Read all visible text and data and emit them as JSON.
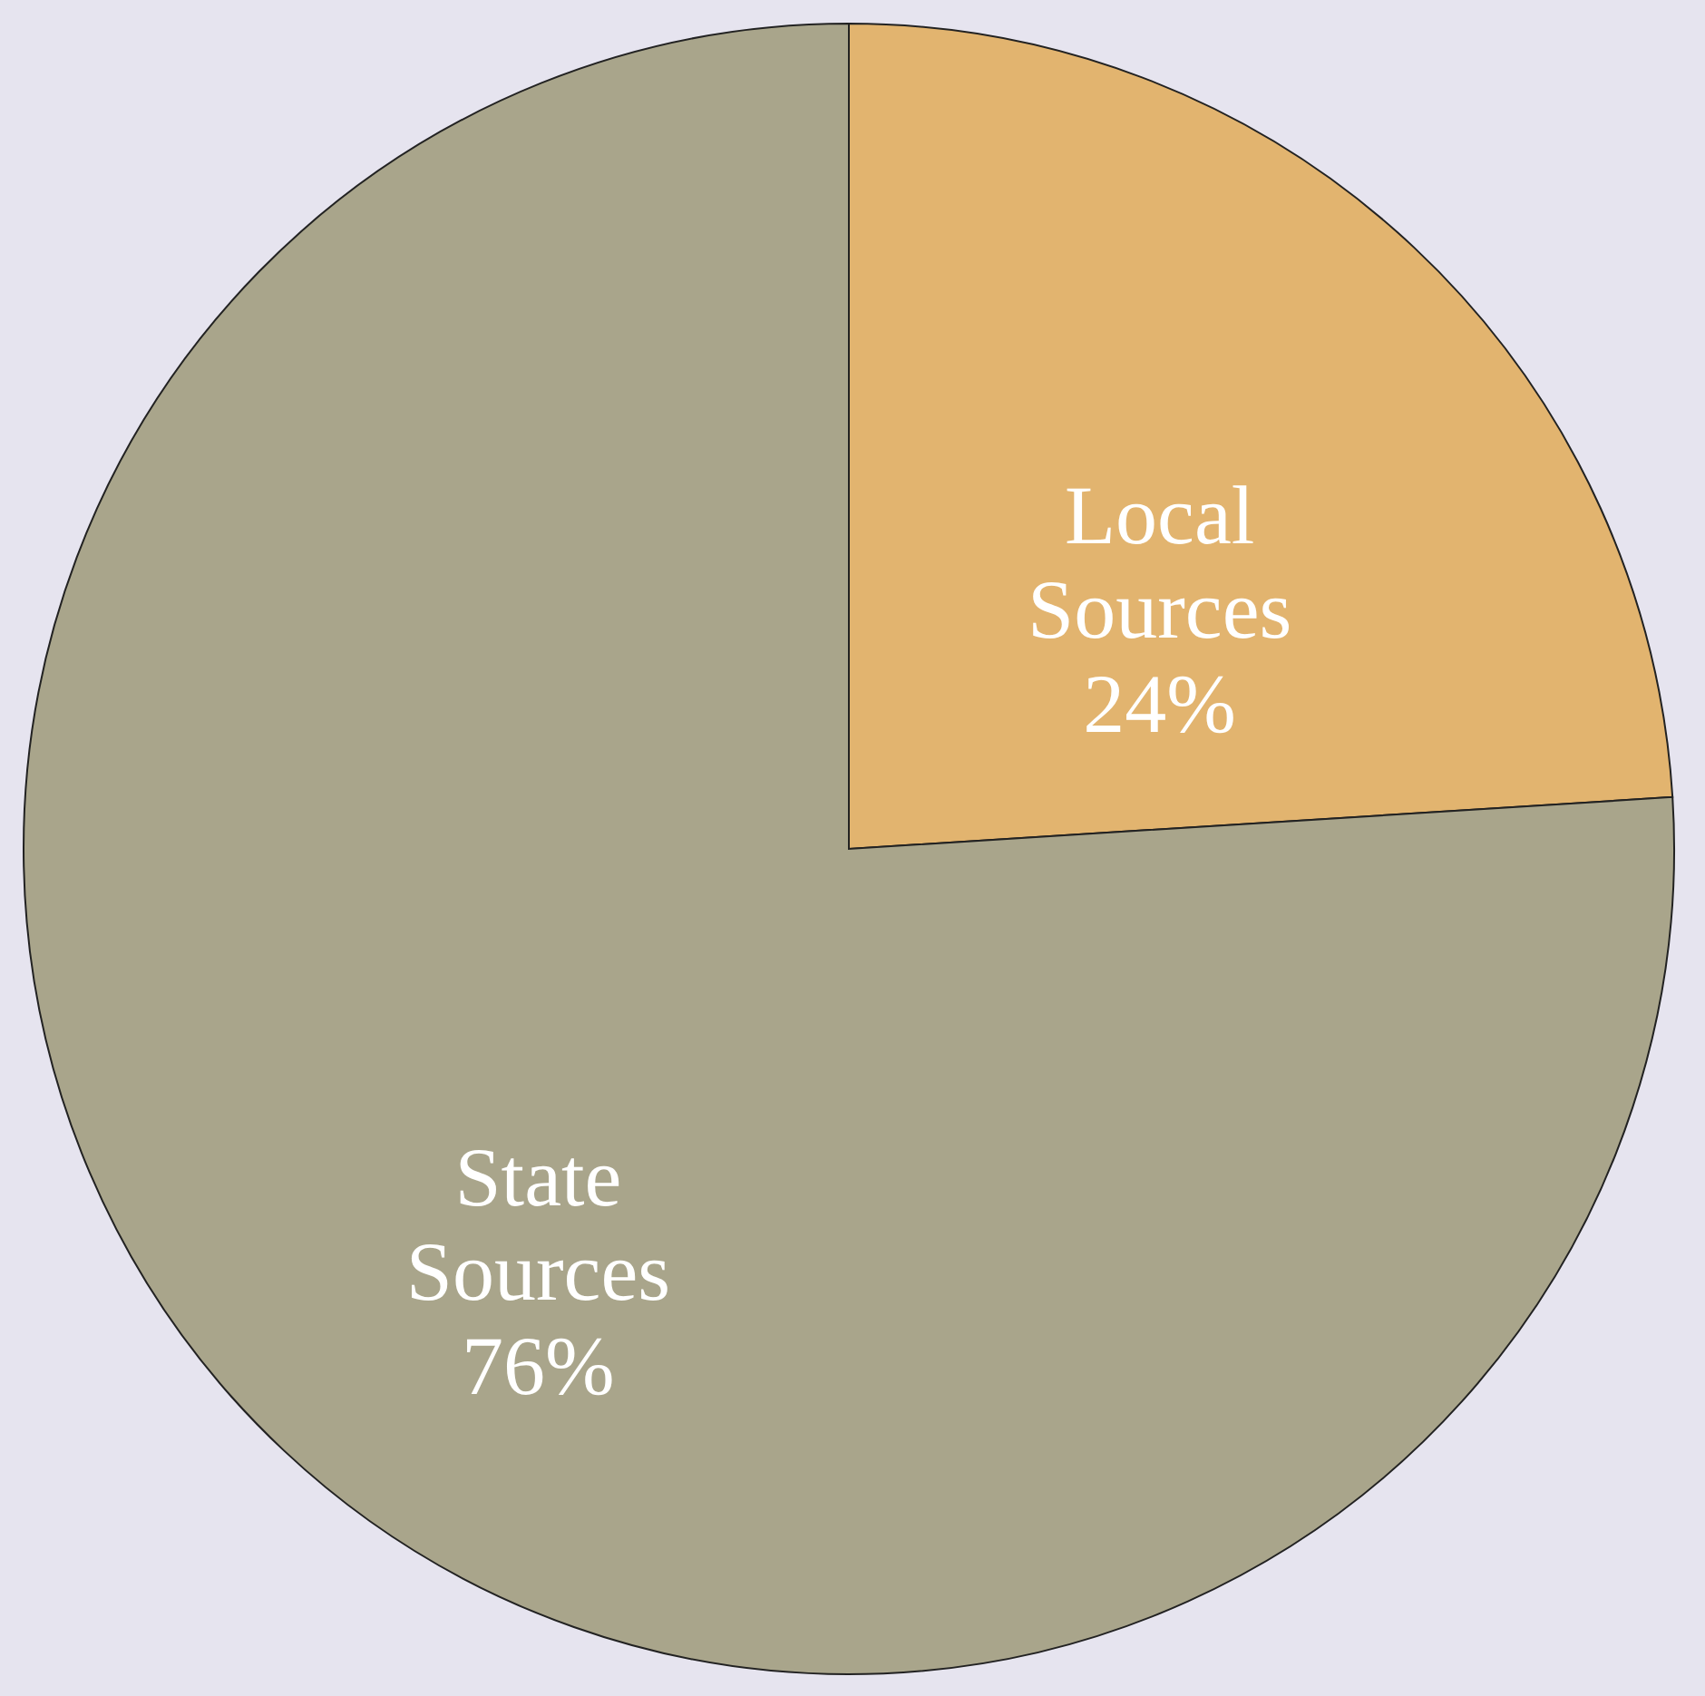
{
  "chart_data": {
    "type": "pie",
    "categories": [
      "Local Sources",
      "State Sources"
    ],
    "values": [
      24,
      76
    ],
    "colors": [
      "#e2b46f",
      "#a9a58b"
    ],
    "value_labels": [
      "24%",
      "76%"
    ],
    "legend": false
  }
}
